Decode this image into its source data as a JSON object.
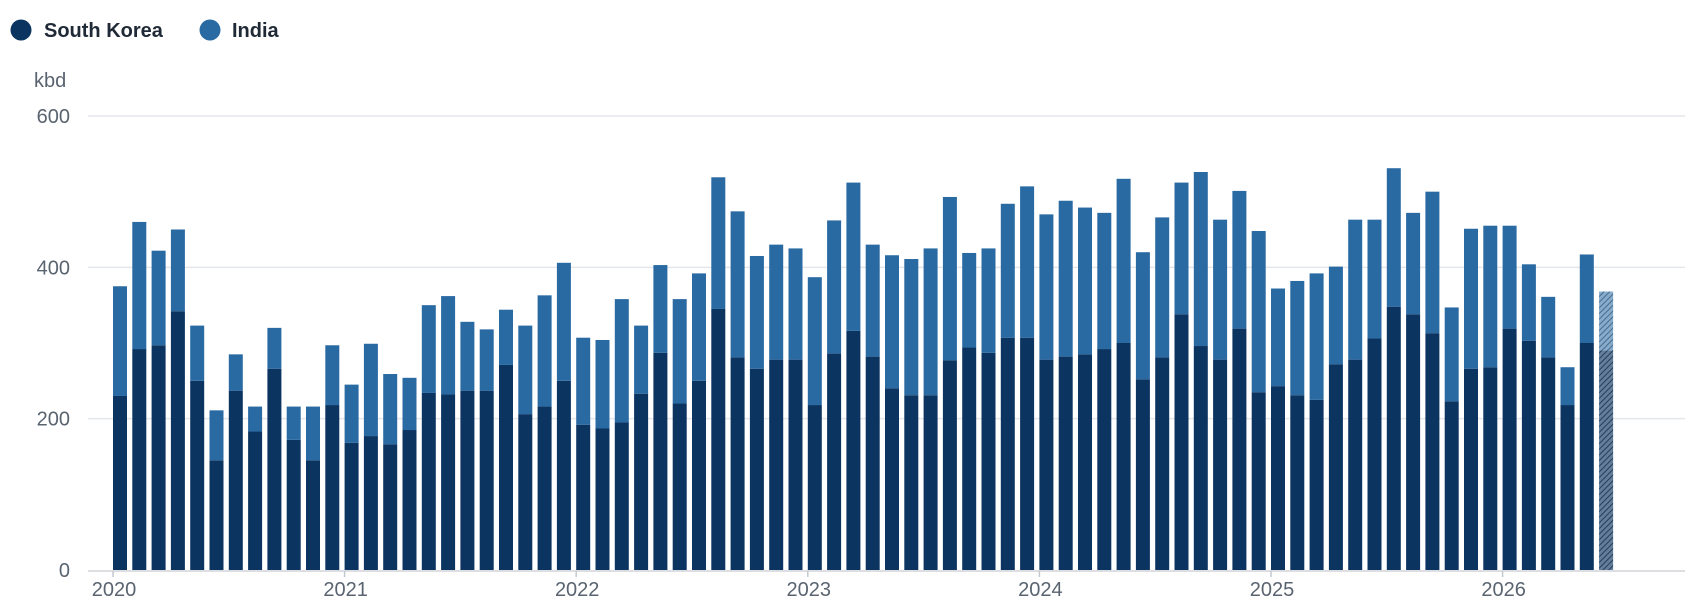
{
  "legend": {
    "items": [
      {
        "label": "South Korea",
        "color": "#0c3460"
      },
      {
        "label": "India",
        "color": "#2a6aa3"
      }
    ]
  },
  "colors": {
    "south_korea": "#0c3460",
    "india": "#2a6aa3",
    "gridline": "#e3e6ea",
    "axis_text": "#5a6470"
  },
  "chart_data": {
    "type": "bar",
    "stacked": true,
    "unit_label": "kbd",
    "ylim": [
      0,
      600
    ],
    "y_ticks": [
      0,
      200,
      400,
      600
    ],
    "x_tick_labels": [
      "2020",
      "2021",
      "2022",
      "2023",
      "2024",
      "2025",
      "2026"
    ],
    "x_start": "2020-01",
    "frequency": "monthly",
    "grid": true,
    "legend_position": "top-left",
    "last_bar_hatched": true,
    "series": [
      {
        "name": "South Korea",
        "values": [
          230,
          292,
          297,
          342,
          250,
          145,
          237,
          183,
          266,
          172,
          145,
          218,
          168,
          177,
          166,
          185,
          234,
          232,
          237,
          237,
          271,
          206,
          216,
          250,
          192,
          187,
          195,
          233,
          287,
          220,
          250,
          345,
          281,
          266,
          278,
          278,
          218,
          286,
          316,
          282,
          240,
          231,
          231,
          277,
          294,
          287,
          307,
          307,
          278,
          282,
          285,
          292,
          300,
          252,
          281,
          338,
          296,
          278,
          319,
          235,
          243,
          231,
          225,
          272,
          278,
          306,
          348,
          338,
          313,
          223,
          266,
          268,
          319,
          303,
          281,
          218,
          300,
          290
        ]
      },
      {
        "name": "India",
        "values": [
          145,
          168,
          125,
          108,
          73,
          66,
          48,
          33,
          54,
          44,
          71,
          79,
          77,
          122,
          93,
          69,
          116,
          130,
          91,
          81,
          73,
          117,
          147,
          156,
          115,
          117,
          163,
          90,
          116,
          138,
          142,
          174,
          193,
          149,
          152,
          147,
          169,
          176,
          196,
          148,
          176,
          180,
          194,
          216,
          125,
          138,
          177,
          200,
          192,
          206,
          194,
          180,
          217,
          168,
          185,
          174,
          230,
          185,
          182,
          213,
          129,
          151,
          167,
          129,
          185,
          157,
          183,
          134,
          187,
          124,
          185,
          187,
          136,
          101,
          80,
          50,
          117,
          78
        ]
      }
    ]
  }
}
